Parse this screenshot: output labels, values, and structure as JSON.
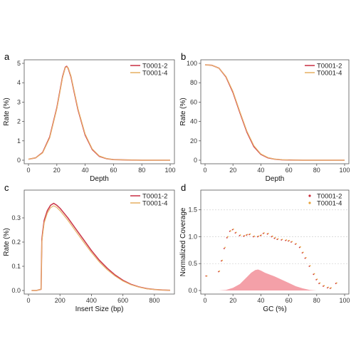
{
  "chart_data": [
    {
      "id": "a",
      "panel_label": "a",
      "type": "line",
      "xlabel": "Depth",
      "ylabel": "Rate (%)",
      "xlim": [
        0,
        100
      ],
      "ylim": [
        0,
        5
      ],
      "xticks": [
        0,
        20,
        40,
        60,
        80,
        100
      ],
      "yticks": [
        0,
        1,
        2,
        3,
        4,
        5
      ],
      "legend_position": "top-right",
      "grid": false,
      "series": [
        {
          "name": "T0001-2",
          "color": "#cc3b4e",
          "x": [
            0,
            5,
            10,
            15,
            20,
            22,
            24,
            26,
            27,
            28,
            30,
            32,
            35,
            40,
            45,
            50,
            55,
            60,
            70,
            80,
            100
          ],
          "y": [
            0.05,
            0.12,
            0.4,
            1.2,
            2.7,
            3.5,
            4.3,
            4.8,
            4.85,
            4.75,
            4.3,
            3.6,
            2.6,
            1.3,
            0.55,
            0.2,
            0.08,
            0.03,
            0.01,
            0,
            0
          ]
        },
        {
          "name": "T0001-4",
          "color": "#e8b46a",
          "x": [
            0,
            5,
            10,
            15,
            20,
            22,
            24,
            26,
            27,
            28,
            30,
            32,
            35,
            40,
            45,
            50,
            55,
            60,
            70,
            80,
            100
          ],
          "y": [
            0.05,
            0.12,
            0.38,
            1.15,
            2.65,
            3.45,
            4.25,
            4.78,
            4.82,
            4.78,
            4.35,
            3.65,
            2.65,
            1.35,
            0.58,
            0.22,
            0.09,
            0.03,
            0.01,
            0,
            0
          ]
        }
      ]
    },
    {
      "id": "b",
      "panel_label": "b",
      "type": "line",
      "xlabel": "Depth",
      "ylabel": "Rate (%)",
      "xlim": [
        0,
        100
      ],
      "ylim": [
        0,
        100
      ],
      "xticks": [
        0,
        20,
        40,
        60,
        80,
        100
      ],
      "yticks": [
        0,
        20,
        40,
        60,
        80,
        100
      ],
      "legend_position": "top-right",
      "grid": false,
      "series": [
        {
          "name": "T0001-2",
          "color": "#cc3b4e",
          "x": [
            0,
            5,
            10,
            15,
            20,
            25,
            30,
            35,
            40,
            45,
            50,
            55,
            60,
            70,
            80,
            100
          ],
          "y": [
            98.5,
            98,
            95,
            86,
            70,
            49,
            29,
            14,
            6,
            2.5,
            1,
            0.4,
            0.2,
            0,
            0,
            0
          ]
        },
        {
          "name": "T0001-4",
          "color": "#e8b46a",
          "x": [
            0,
            5,
            10,
            15,
            20,
            25,
            30,
            35,
            40,
            45,
            50,
            55,
            60,
            70,
            80,
            100
          ],
          "y": [
            98.5,
            98,
            95,
            86.5,
            71,
            50,
            30,
            15,
            6.5,
            2.8,
            1.1,
            0.5,
            0.2,
            0,
            0,
            0
          ]
        }
      ]
    },
    {
      "id": "c",
      "panel_label": "c",
      "type": "line",
      "xlabel": "Insert Size (bp)",
      "ylabel": "Rate (%)",
      "xlim": [
        0,
        900
      ],
      "ylim": [
        0,
        0.4
      ],
      "xticks": [
        0,
        200,
        400,
        600,
        800
      ],
      "yticks": [
        0,
        0.1,
        0.2,
        0.3
      ],
      "ytick_labels": [
        "0.0",
        "0.1",
        "0.2",
        "0.3"
      ],
      "legend_position": "top-right",
      "grid": false,
      "series": [
        {
          "name": "T0001-2",
          "color": "#cc3b4e",
          "x": [
            20,
            50,
            80,
            85,
            90,
            100,
            120,
            140,
            160,
            180,
            200,
            250,
            300,
            350,
            400,
            450,
            500,
            550,
            600,
            650,
            700,
            750,
            800,
            850,
            900
          ],
          "y": [
            0,
            0,
            0.005,
            0.21,
            0.24,
            0.29,
            0.33,
            0.352,
            0.36,
            0.352,
            0.34,
            0.3,
            0.255,
            0.21,
            0.165,
            0.125,
            0.092,
            0.064,
            0.042,
            0.026,
            0.015,
            0.008,
            0.004,
            0.002,
            0.001
          ]
        },
        {
          "name": "T0001-4",
          "color": "#e8b46a",
          "x": [
            20,
            50,
            80,
            85,
            90,
            100,
            120,
            140,
            160,
            180,
            200,
            250,
            300,
            350,
            400,
            450,
            500,
            550,
            600,
            650,
            700,
            750,
            800,
            850,
            900
          ],
          "y": [
            0,
            0,
            0.005,
            0.2,
            0.23,
            0.28,
            0.32,
            0.342,
            0.35,
            0.343,
            0.33,
            0.29,
            0.245,
            0.2,
            0.157,
            0.118,
            0.086,
            0.06,
            0.039,
            0.024,
            0.014,
            0.007,
            0.004,
            0.002,
            0.001
          ]
        }
      ]
    },
    {
      "id": "d",
      "panel_label": "d",
      "type": "scatter",
      "xlabel": "GC (%)",
      "ylabel": "Normalized Coverage",
      "xlim": [
        0,
        100
      ],
      "ylim": [
        0,
        1.8
      ],
      "xticks": [
        0,
        20,
        40,
        60,
        80,
        100
      ],
      "yticks": [
        0,
        0.5,
        1,
        1.5
      ],
      "ytick_labels": [
        "0.0",
        "0.5",
        "1.0",
        "1.5"
      ],
      "reference_lines_y": [
        0.5,
        1,
        1.5
      ],
      "legend_position": "top-right",
      "grid": false,
      "series": [
        {
          "name": "T0001-2",
          "color": "#cc2c3b",
          "x": [
            1,
            10,
            12,
            14,
            16,
            18,
            20,
            22,
            25,
            28,
            30,
            32,
            35,
            38,
            40,
            42,
            45,
            48,
            50,
            52,
            55,
            58,
            60,
            62,
            65,
            68,
            70,
            72,
            75,
            78,
            80,
            82,
            85,
            88,
            90,
            94
          ],
          "y": [
            0.27,
            0.35,
            0.55,
            0.78,
            0.98,
            1.1,
            1.13,
            1.07,
            1.02,
            1.01,
            1.03,
            1.04,
            1.0,
            1.0,
            1.02,
            1.06,
            1.05,
            1.0,
            0.97,
            0.95,
            0.94,
            0.93,
            0.92,
            0.9,
            0.86,
            0.8,
            0.7,
            0.6,
            0.45,
            0.3,
            0.2,
            0.13,
            0.08,
            0.05,
            0.04,
            0.13
          ]
        },
        {
          "name": "T0001-4",
          "color": "#e8a33c",
          "x": [
            1,
            10,
            12,
            14,
            16,
            18,
            20,
            22,
            25,
            28,
            30,
            32,
            35,
            38,
            40,
            42,
            45,
            48,
            50,
            52,
            55,
            58,
            60,
            62,
            65,
            68,
            70,
            72,
            75,
            78,
            80,
            82,
            85,
            88,
            90,
            94
          ],
          "y": [
            0.27,
            0.36,
            0.56,
            0.8,
            1.0,
            1.11,
            1.14,
            1.08,
            1.03,
            1.02,
            1.04,
            1.05,
            1.01,
            1.01,
            1.03,
            1.07,
            1.06,
            1.01,
            0.98,
            0.96,
            0.95,
            0.94,
            0.93,
            0.91,
            0.87,
            0.81,
            0.71,
            0.61,
            0.46,
            0.31,
            0.21,
            0.14,
            0.09,
            0.06,
            0.05,
            0.14
          ]
        }
      ],
      "gc_distribution_area": {
        "color": "#f4a0a8",
        "x": [
          10,
          15,
          20,
          25,
          30,
          33,
          36,
          38,
          40,
          43,
          46,
          50,
          55,
          60,
          65,
          70,
          75,
          80
        ],
        "y": [
          0,
          0.01,
          0.05,
          0.12,
          0.25,
          0.33,
          0.38,
          0.39,
          0.37,
          0.33,
          0.3,
          0.26,
          0.2,
          0.14,
          0.08,
          0.04,
          0.01,
          0
        ]
      }
    }
  ]
}
